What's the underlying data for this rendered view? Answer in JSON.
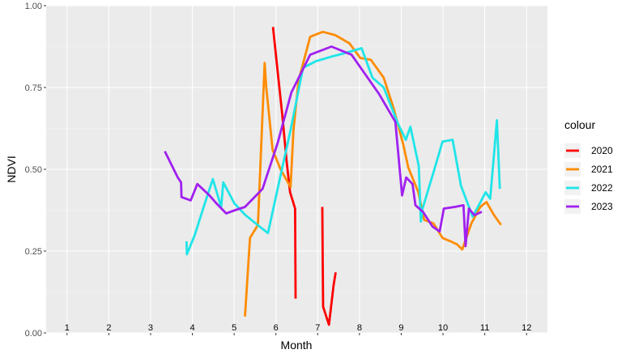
{
  "chart_data": {
    "type": "line",
    "xlabel": "Month",
    "ylabel": "NDVI",
    "xlim": [
      0.5,
      12.5
    ],
    "ylim": [
      0,
      1
    ],
    "y_ticks": [
      "0.00",
      "0.25",
      "0.50",
      "0.75",
      "1.00"
    ],
    "y_tick_values": [
      0,
      0.25,
      0.5,
      0.75,
      1
    ],
    "months": [
      "1",
      "2",
      "3",
      "4",
      "5",
      "6",
      "7",
      "8",
      "9",
      "10",
      "11",
      "12"
    ],
    "background": "#ebebeb",
    "grid": true,
    "legend": {
      "title": "colour",
      "position": "right"
    },
    "series": [
      {
        "name": "2020",
        "color": "#ff0000",
        "segments": [
          [
            [
              5.93,
              0.935
            ],
            [
              6.04,
              0.8
            ],
            [
              6.15,
              0.67
            ],
            [
              6.26,
              0.52
            ],
            [
              6.34,
              0.43
            ],
            [
              6.46,
              0.38
            ],
            [
              6.47,
              0.105
            ]
          ],
          [
            [
              7.11,
              0.385
            ],
            [
              7.12,
              0.22
            ],
            [
              7.13,
              0.08
            ],
            [
              7.18,
              0.06
            ],
            [
              7.27,
              0.025
            ],
            [
              7.38,
              0.145
            ],
            [
              7.43,
              0.185
            ]
          ]
        ]
      },
      {
        "name": "2021",
        "color": "#ff8c00",
        "segments": [
          [
            [
              5.26,
              0.05
            ],
            [
              5.38,
              0.29
            ],
            [
              5.57,
              0.33
            ],
            [
              5.73,
              0.825
            ],
            [
              5.77,
              0.75
            ],
            [
              5.92,
              0.56
            ],
            [
              6.11,
              0.5
            ],
            [
              6.35,
              0.445
            ],
            [
              6.42,
              0.62
            ],
            [
              6.54,
              0.77
            ],
            [
              6.82,
              0.905
            ],
            [
              7.12,
              0.92
            ],
            [
              7.42,
              0.91
            ],
            [
              7.76,
              0.885
            ],
            [
              8.02,
              0.84
            ],
            [
              8.27,
              0.835
            ],
            [
              8.58,
              0.78
            ],
            [
              8.82,
              0.685
            ],
            [
              9.05,
              0.575
            ],
            [
              9.17,
              0.505
            ],
            [
              9.41,
              0.43
            ],
            [
              9.55,
              0.345
            ],
            [
              9.77,
              0.335
            ],
            [
              9.99,
              0.29
            ],
            [
              10.18,
              0.28
            ],
            [
              10.34,
              0.27
            ],
            [
              10.46,
              0.255
            ],
            [
              10.68,
              0.335
            ],
            [
              10.89,
              0.385
            ],
            [
              11.04,
              0.4
            ],
            [
              11.22,
              0.36
            ],
            [
              11.39,
              0.33
            ]
          ]
        ]
      },
      {
        "name": "2022",
        "color": "#1ee5e8",
        "segments": [
          [
            [
              3.86,
              0.28
            ],
            [
              3.87,
              0.24
            ],
            [
              4.06,
              0.3
            ],
            [
              4.27,
              0.385
            ],
            [
              4.49,
              0.47
            ],
            [
              4.69,
              0.385
            ],
            [
              4.74,
              0.46
            ],
            [
              5.01,
              0.395
            ],
            [
              5.27,
              0.36
            ],
            [
              5.56,
              0.33
            ],
            [
              5.81,
              0.305
            ],
            [
              6.04,
              0.44
            ],
            [
              6.35,
              0.62
            ],
            [
              6.65,
              0.81
            ],
            [
              6.95,
              0.83
            ],
            [
              7.35,
              0.845
            ],
            [
              7.65,
              0.855
            ],
            [
              8.05,
              0.87
            ],
            [
              8.31,
              0.78
            ],
            [
              8.58,
              0.75
            ],
            [
              8.92,
              0.64
            ],
            [
              9.11,
              0.59
            ],
            [
              9.22,
              0.63
            ],
            [
              9.42,
              0.51
            ],
            [
              9.47,
              0.34
            ],
            [
              9.51,
              0.38
            ],
            [
              9.77,
              0.49
            ],
            [
              9.99,
              0.585
            ],
            [
              10.23,
              0.59
            ],
            [
              10.43,
              0.45
            ],
            [
              10.71,
              0.355
            ],
            [
              11.02,
              0.43
            ],
            [
              11.13,
              0.41
            ],
            [
              11.29,
              0.65
            ],
            [
              11.36,
              0.44
            ]
          ]
        ]
      },
      {
        "name": "2023",
        "color": "#a020f0",
        "segments": [
          [
            [
              3.34,
              0.555
            ],
            [
              3.65,
              0.475
            ],
            [
              3.73,
              0.46
            ],
            [
              3.74,
              0.415
            ],
            [
              3.96,
              0.405
            ],
            [
              4.12,
              0.455
            ],
            [
              4.41,
              0.42
            ],
            [
              4.58,
              0.395
            ],
            [
              4.81,
              0.365
            ],
            [
              5.02,
              0.375
            ],
            [
              5.26,
              0.385
            ],
            [
              5.68,
              0.44
            ],
            [
              6.04,
              0.58
            ],
            [
              6.37,
              0.735
            ],
            [
              6.82,
              0.85
            ],
            [
              7.33,
              0.875
            ],
            [
              7.81,
              0.85
            ],
            [
              8.47,
              0.73
            ],
            [
              8.86,
              0.645
            ],
            [
              9.02,
              0.42
            ],
            [
              9.12,
              0.475
            ],
            [
              9.27,
              0.455
            ],
            [
              9.34,
              0.39
            ],
            [
              9.52,
              0.37
            ],
            [
              9.75,
              0.325
            ],
            [
              9.92,
              0.31
            ],
            [
              10.02,
              0.38
            ],
            [
              10.28,
              0.385
            ],
            [
              10.49,
              0.39
            ],
            [
              10.54,
              0.265
            ],
            [
              10.62,
              0.38
            ],
            [
              10.75,
              0.36
            ],
            [
              10.93,
              0.37
            ]
          ]
        ]
      }
    ]
  }
}
